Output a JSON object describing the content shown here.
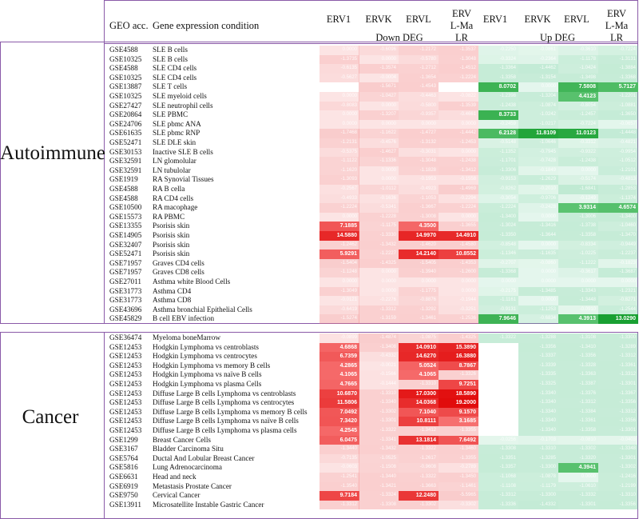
{
  "chart_data": {
    "type": "heatmap",
    "header": {
      "geo_label": "GEO acc.",
      "condition_label": "Gene expression condition",
      "columns": [
        "ERV1",
        "ERVK",
        "ERVL",
        "ERVL-MaLR",
        "ERV1",
        "ERVK",
        "ERVL",
        "ERVL-MaLR"
      ],
      "down_label": "Down DEG",
      "up_label": "Up DEG"
    },
    "groups": [
      {
        "name": "Autoimmune",
        "start": 0,
        "end": 29
      },
      {
        "name": "Cancer",
        "start": 31,
        "end": 49
      }
    ],
    "rows": [
      {
        "acc": "GSE4588",
        "cond": "SLE B cells",
        "down": [
          0.0,
          -0.6096,
          -1.2172,
          -1.3537
        ],
        "up": [
          -0.225,
          -0.0861,
          -0.361,
          -0.7224
        ]
      },
      {
        "acc": "GSE10325",
        "cond": "SLE B cells",
        "down": [
          -1.3735,
          0.0,
          -0.578,
          -1.3048
        ],
        "up": [
          -0.3324,
          -0.2364,
          -1.1178,
          -1.3131
        ]
      },
      {
        "acc": "GSE4588",
        "cond": "SLE CD4 cells",
        "down": [
          -0.6135,
          -1.3574,
          -1.2712,
          -1.4512
        ],
        "up": [
          -1.3364,
          -1.4462,
          -1.0424,
          -1.3884
        ]
      },
      {
        "acc": "GSE10325",
        "cond": "SLE CD4 cells",
        "down": [
          -0.5627,
          -0.0004,
          -1.3654,
          -1.2224
        ],
        "up": [
          -1.3358,
          -1.3154,
          -1.3498,
          -1.3368
        ]
      },
      {
        "acc": "GSE13887",
        "cond": "SLE T cells",
        "down": [
          null,
          -1.5671,
          -1.4543,
          null
        ],
        "up": [
          8.0702,
          0.0,
          7.5808,
          5.7127
        ]
      },
      {
        "acc": "GSE10325",
        "cond": "SLE myeloid cells",
        "down": [
          0.0,
          -1.0427,
          -0.4463,
          -0.0822
        ],
        "up": [
          -1.2398,
          -1.3204,
          4.4123,
          -1.2201
        ]
      },
      {
        "acc": "GSE27427",
        "cond": "SLE neutrophil cells",
        "down": [
          -0.8083,
          0.0,
          -0.58,
          -1.3539
        ],
        "up": [
          -1.2438,
          -1.0874,
          -0.8054,
          -1.0881
        ]
      },
      {
        "acc": "GSE20864",
        "cond": "SLE PBMC",
        "down": [
          0.0,
          -1.3207,
          -0.9357,
          -0.4661
        ],
        "up": [
          8.3733,
          -1.0242,
          -1.2457,
          -1.365
        ]
      },
      {
        "acc": "GSE24706",
        "cond": "SLE pbmc ANA",
        "down": [
          0.0,
          0.0,
          0.0,
          0.0
        ],
        "up": [
          -0.2459,
          -1.0217,
          -0.7224,
          -0.0657
        ]
      },
      {
        "acc": "GSE61635",
        "cond": "SLE pbmc RNP",
        "down": [
          -1.7468,
          -1.1622,
          -1.4727,
          -1.4442
        ],
        "up": [
          6.2128,
          11.8109,
          11.0123,
          -1.4448
        ]
      },
      {
        "acc": "GSE52471",
        "cond": "SLE DLE skin",
        "down": [
          -1.2131,
          -0.4576,
          -1.3132,
          -1.2453
        ],
        "up": [
          -0.5148,
          -1.0646,
          -0.3312,
          -0.4821
        ]
      },
      {
        "acc": "GSE30153",
        "cond": "Inactive SLE B cells",
        "down": [
          -0.5375,
          -1.4627,
          -0.3031,
          0.0
        ],
        "up": [
          -1.1352,
          -0.7945,
          -0.9322,
          -0.9954
        ]
      },
      {
        "acc": "GSE32591",
        "cond": "LN glomolular",
        "down": [
          -1.1122,
          -1.1336,
          -1.3048,
          -1.2438
        ],
        "up": [
          -1.1701,
          -0.7428,
          -1.2438,
          -1.0512
        ]
      },
      {
        "acc": "GSE32591",
        "cond": "LN tubulolar",
        "down": [
          -1.162,
          0.0,
          -1.1828,
          -1.3412
        ],
        "up": [
          -1.3306,
          -0.1849,
          0.0,
          -1.2101
        ]
      },
      {
        "acc": "GSE1919",
        "cond": "RA Synovial Tissues",
        "down": [
          -1.3093,
          0.0,
          -0.1953,
          -0.1558
        ],
        "up": [
          -0.9153,
          -1.2629,
          -0.5174,
          -0.4813
        ]
      },
      {
        "acc": "GSE4588",
        "cond": "RA B cella",
        "down": [
          -0.2567,
          -1.0112,
          -0.4923,
          -1.4969
        ],
        "up": [
          -0.8262,
          -0.201,
          -1.6841,
          -1.2853
        ]
      },
      {
        "acc": "GSE4588",
        "cond": "RA CD4 cells",
        "down": [
          -0.4933,
          -0.1636,
          -1.1053,
          -0.2294
        ],
        "up": [
          -0.3054,
          -0.9706,
          -0.1249,
          -1.1374
        ]
      },
      {
        "acc": "GSE10500",
        "cond": "RA macophage",
        "down": [
          -1.2224,
          -0.5341,
          -1.3667,
          -1.2224
        ],
        "up": [
          -1.2224,
          -0.2428,
          3.9314,
          4.6574
        ]
      },
      {
        "acc": "GSE15573",
        "cond": "RA PBMC",
        "down": [
          0.0,
          -1.2228,
          -1.3008,
          0.0
        ],
        "up": [
          -1.34,
          0.0,
          -1.3006,
          -1.34
        ]
      },
      {
        "acc": "GSE13355",
        "cond": "Psorisis skin",
        "down": [
          7.1885,
          -1.1175,
          4.35,
          -1.3655
        ],
        "up": [
          -1.3024,
          -1.3416,
          -1.3738,
          -1.046
        ]
      },
      {
        "acc": "GSE14905",
        "cond": "Psorisis skin",
        "down": [
          14.588,
          -1.333,
          14.997,
          14.491
        ],
        "up": [
          -1.335,
          -1.3644,
          -1.3358,
          -1.347
        ]
      },
      {
        "acc": "GSE32407",
        "cond": "Psorisis skin",
        "down": [
          -1.2462,
          -1.3432,
          -1.462,
          -1.458
        ],
        "up": [
          -0.8548,
          0.0,
          -0.8334,
          -0.9449
        ]
      },
      {
        "acc": "GSE52471",
        "cond": "Psorisis skin",
        "down": [
          5.9291,
          -1.2227,
          14.214,
          10.8552
        ],
        "up": [
          -1.1346,
          -1.1635,
          -1.0225,
          -1.2237
        ]
      },
      {
        "acc": "GSE71957",
        "cond": "Graves CD4 cells",
        "down": [
          -1.5404,
          -1.4325,
          -1.5405,
          -1.4353
        ],
        "up": [
          -0.2707,
          -0.086,
          -1.1222,
          -0.1823
        ]
      },
      {
        "acc": "GSE71957",
        "cond": "Graves CD8 cells",
        "down": [
          -1.1248,
          0.0,
          -1.394,
          -1.26
        ],
        "up": [
          -1.3368,
          0.0,
          -0.3617,
          -1.3687
        ]
      },
      {
        "acc": "GSE27011",
        "cond": "Asthma white Blood Cells",
        "down": [
          0.0,
          0.0,
          0.0,
          0.0
        ],
        "up": [
          0.0,
          0.0,
          0.0,
          0.0
        ]
      },
      {
        "acc": "GSE31773",
        "cond": "Asthma CD4",
        "down": [
          -1.3049,
          0.0,
          -1.1775,
          0.0
        ],
        "up": [
          -0.2175,
          -1.3485,
          -1.3343,
          -1.2321
        ]
      },
      {
        "acc": "GSE31773",
        "cond": "Asthma CD8",
        "down": [
          -0.0121,
          -0.2276,
          -0.8876,
          -0.1944
        ],
        "up": [
          -1.1161,
          0.0,
          -1.3448,
          -0.8271
        ]
      },
      {
        "acc": "GSE43696",
        "cond": "Asthma bronchial Epithelial Cells",
        "down": [
          -0.6419,
          -1.3312,
          -1.3292,
          -0.3251
        ],
        "up": [
          -0.9131,
          -1.1253,
          -0.091,
          -1.2544
        ]
      },
      {
        "acc": "GSE45829",
        "cond": "B cell  EBV infection",
        "down": [
          -1.5274,
          -1.3159,
          -1.3461,
          -1.2536
        ],
        "up": [
          7.9646,
          -0.6834,
          4.3913,
          13.029
        ]
      },
      {
        "acc": "GSE36474",
        "cond": "Myeloma boneMarrow",
        "down": [
          -0.0899,
          -1.4874,
          -1.0875,
          -1.4325
        ],
        "up": [
          -1.3322,
          -1.3288,
          -1.3108,
          -1.33
        ]
      },
      {
        "acc": "GSE12453",
        "cond": "Hodgkin Lymphoma vs centroblasts",
        "down": [
          4.6868,
          -1.3408,
          14.091,
          15.389
        ],
        "up": [
          null,
          -1.3356,
          -1.341,
          -1.3289
        ]
      },
      {
        "acc": "GSE12453",
        "cond": "Hodgkin Lymphoma vs centrocytes",
        "down": [
          6.7359,
          -0.4332,
          14.627,
          16.388
        ],
        "up": [
          null,
          -1.3337,
          -1.3356,
          -1.3312
        ]
      },
      {
        "acc": "GSE12453",
        "cond": "Hodgkin Lymphoma vs memory B cells",
        "down": [
          4.2865,
          -0.0021,
          5.0524,
          8.7867
        ],
        "up": [
          null,
          -1.3339,
          -1.3328,
          -1.3361
        ]
      },
      {
        "acc": "GSE12453",
        "cond": "Hodgkin Lymphoma vs naïve B cells",
        "down": [
          4.1065,
          -0.1566,
          4.1065,
          -1.3326
        ],
        "up": [
          null,
          -1.3335,
          -1.3363,
          -1.3312
        ]
      },
      {
        "acc": "GSE12453",
        "cond": "Hodgkin Lymphoma vs plasma Cells",
        "down": [
          4.7665,
          -0.1444,
          -1.331,
          9.7251
        ],
        "up": [
          null,
          -1.3325,
          -1.3387,
          -1.3301
        ]
      },
      {
        "acc": "GSE12453",
        "cond": "Diffuse Large B cells Lymphoma vs centroblasts",
        "down": [
          10.687,
          -1.331,
          17.03,
          18.589
        ],
        "up": [
          null,
          -1.334,
          -1.3376,
          -1.3367
        ]
      },
      {
        "acc": "GSE12453",
        "cond": "Diffuse Large B cells Lymphoma vs centrocytes",
        "down": [
          11.5806,
          -1.334,
          14.0368,
          19.2
        ],
        "up": [
          null,
          -1.334,
          -1.3312,
          -1.3356
        ]
      },
      {
        "acc": "GSE12453",
        "cond": "Diffuse Large B cells Lymphoma vs memory B cells",
        "down": [
          7.0492,
          -1.3302,
          7.104,
          9.157
        ],
        "up": [
          null,
          -1.334,
          -1.3384,
          -1.3312
        ]
      },
      {
        "acc": "GSE12453",
        "cond": "Diffuse Large B cells Lymphoma vs naïve B cells",
        "down": [
          7.342,
          -1.3301,
          10.8111,
          3.1685
        ],
        "up": [
          null,
          -1.334,
          -1.3361,
          -1.3356
        ]
      },
      {
        "acc": "GSE12453",
        "cond": "Diffuse Large B cells Lymphoma vs plasma cells",
        "down": [
          4.2545,
          -1.3322,
          -1.3412,
          -1.3355
        ],
        "up": [
          null,
          -1.334,
          -1.3358,
          -1.3301
        ]
      },
      {
        "acc": "GSE1299",
        "cond": "Breast Cancer Cells",
        "down": [
          6.0475,
          -1.3341,
          13.1814,
          7.6492
        ],
        "up": [
          -0.0256,
          -0.1703,
          -0.081,
          -0.0403
        ]
      },
      {
        "acc": "GSE3167",
        "cond": "Bladder Carcinoma Situ",
        "down": [
          -1.344,
          -1.3432,
          -1.3322,
          -1.346
        ],
        "up": [
          -1.3308,
          -1.331,
          -1.3302,
          -1.3348
        ]
      },
      {
        "acc": "GSE5764",
        "cond": "Ductal And Lobular Breast Cancer",
        "down": [
          -0.7135,
          -1.0525,
          -1.2617,
          -1.3355
        ],
        "up": [
          -1.3351,
          -1.3285,
          -1.332,
          -1.3301
        ]
      },
      {
        "acc": "GSE5816",
        "cond": "Lung Adrenocarcinoma",
        "down": [
          -0.0603,
          -1.1508,
          -0.9608,
          -0.2789
        ],
        "up": [
          -1.3357,
          -1.33,
          4.3941,
          -1.3302
        ]
      },
      {
        "acc": "GSE6631",
        "cond": "Head and neck",
        "down": [
          -1.2541,
          -1.344,
          -1.3322,
          -1.345
        ],
        "up": [
          -1.1068,
          -1.0878,
          0.0,
          -1.2416
        ]
      },
      {
        "acc": "GSE6919",
        "cond": "Metastasis Prostate Cancer",
        "down": [
          -1.354,
          -1.3421,
          -1.3663,
          -1.1461
        ],
        "up": [
          -1.1108,
          -1.1179,
          -1.061,
          -1.2199
        ]
      },
      {
        "acc": "GSE9750",
        "cond": "Cervical Cancer",
        "down": [
          9.7184,
          -1.3324,
          12.248,
          -5.5965
        ],
        "up": [
          -1.3312,
          -1.33,
          -1.3332,
          -1.331
        ]
      },
      {
        "acc": "GSE13911",
        "cond": "Microsatellite Instable Gastric Cancer",
        "down": [
          -1.3312,
          -1.3308,
          -1.3302,
          -0.3302
        ],
        "up": [
          -1.3336,
          -1.4332,
          -1.3301,
          -1.3356
        ]
      }
    ]
  }
}
